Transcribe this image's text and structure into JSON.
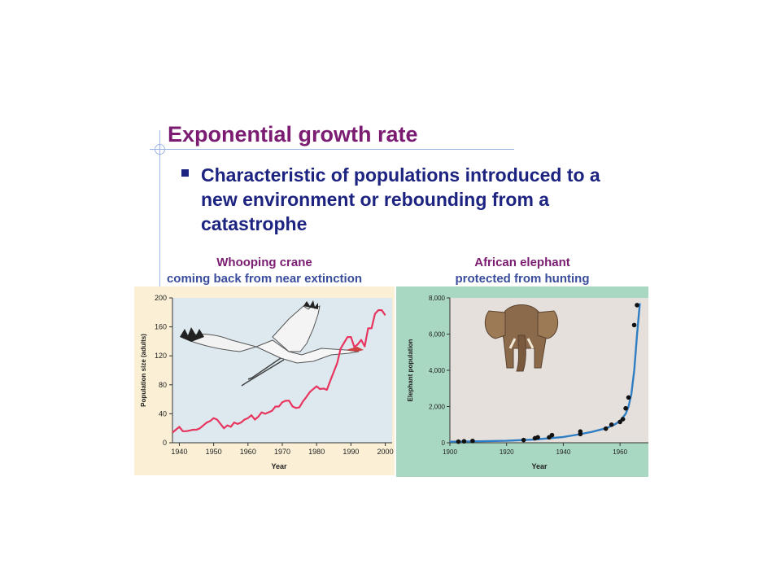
{
  "slide": {
    "title": "Exponential growth rate",
    "bullet": "Characteristic of populations introduced to a new environment or rebounding from a catastrophe"
  },
  "colors": {
    "title": "#7b1c72",
    "bullet_text": "#1c2380",
    "crane_line": "#e8355f",
    "elephant_curve": "#2f7ec4",
    "left_plot_bg": "#dde9ef",
    "right_plot_bg": "#e6e0dc"
  },
  "icons": [
    "crane-illustration",
    "elephant-illustration"
  ],
  "chart_data": [
    {
      "type": "line",
      "title": "Whooping crane",
      "subtitle": "coming back from near extinction",
      "xlabel": "Year",
      "ylabel": "Population size (adults)",
      "xlim": [
        1938,
        2002
      ],
      "ylim": [
        0,
        200
      ],
      "x_ticks": [
        1940,
        1950,
        1960,
        1970,
        1980,
        1990,
        2000
      ],
      "y_ticks": [
        0,
        40,
        80,
        120,
        160,
        200
      ],
      "grid": false,
      "series": [
        {
          "x": [
            1938,
            1939,
            1940,
            1941,
            1942,
            1943,
            1944,
            1945,
            1946,
            1947,
            1948,
            1949,
            1950,
            1951,
            1952,
            1953,
            1954,
            1955,
            1956,
            1957,
            1958,
            1959,
            1960,
            1961,
            1962,
            1963,
            1964,
            1965,
            1966,
            1967,
            1968,
            1969,
            1970,
            1971,
            1972,
            1973,
            1974,
            1975,
            1976,
            1977,
            1978,
            1979,
            1980,
            1981,
            1982,
            1983,
            1984,
            1985,
            1986,
            1987,
            1988,
            1989,
            1990,
            1991,
            1992,
            1993,
            1994,
            1995,
            1996,
            1997,
            1998,
            1999,
            2000
          ],
          "y": [
            14,
            18,
            22,
            16,
            16,
            17,
            18,
            18,
            20,
            24,
            28,
            30,
            34,
            32,
            26,
            20,
            24,
            22,
            28,
            26,
            28,
            32,
            34,
            38,
            32,
            36,
            42,
            40,
            42,
            44,
            50,
            50,
            56,
            58,
            58,
            50,
            48,
            49,
            57,
            63,
            70,
            74,
            78,
            74,
            75,
            73,
            86,
            98,
            110,
            130,
            138,
            146,
            146,
            132,
            136,
            142,
            133,
            158,
            158,
            178,
            183,
            183,
            176
          ]
        }
      ]
    },
    {
      "type": "scatter",
      "title": "African elephant",
      "subtitle": "protected from hunting",
      "xlabel": "Year",
      "ylabel": "Elephant population",
      "xlim": [
        1900,
        1970
      ],
      "ylim": [
        0,
        8000
      ],
      "x_ticks": [
        1900,
        1920,
        1940,
        1960
      ],
      "y_ticks": [
        0,
        2000,
        4000,
        6000,
        8000
      ],
      "y_tick_labels": [
        "0",
        "2,000",
        "4,000",
        "6,000",
        "8,000"
      ],
      "grid": false,
      "points": [
        {
          "x": 1903,
          "y": 60
        },
        {
          "x": 1905,
          "y": 80
        },
        {
          "x": 1908,
          "y": 100
        },
        {
          "x": 1926,
          "y": 150
        },
        {
          "x": 1930,
          "y": 250
        },
        {
          "x": 1931,
          "y": 300
        },
        {
          "x": 1935,
          "y": 300
        },
        {
          "x": 1936,
          "y": 420
        },
        {
          "x": 1946,
          "y": 480
        },
        {
          "x": 1946,
          "y": 620
        },
        {
          "x": 1955,
          "y": 780
        },
        {
          "x": 1957,
          "y": 1000
        },
        {
          "x": 1960,
          "y": 1150
        },
        {
          "x": 1961,
          "y": 1300
        },
        {
          "x": 1962,
          "y": 1900
        },
        {
          "x": 1963,
          "y": 2500
        },
        {
          "x": 1965,
          "y": 6500
        },
        {
          "x": 1966,
          "y": 7600
        }
      ],
      "fit_curve": {
        "x": [
          1900,
          1910,
          1920,
          1930,
          1940,
          1945,
          1950,
          1955,
          1958,
          1960,
          1962,
          1963,
          1964,
          1965,
          1966,
          1967
        ],
        "y": [
          60,
          80,
          110,
          180,
          320,
          450,
          600,
          800,
          1000,
          1200,
          1600,
          2000,
          2700,
          4000,
          6000,
          7700
        ]
      }
    }
  ]
}
